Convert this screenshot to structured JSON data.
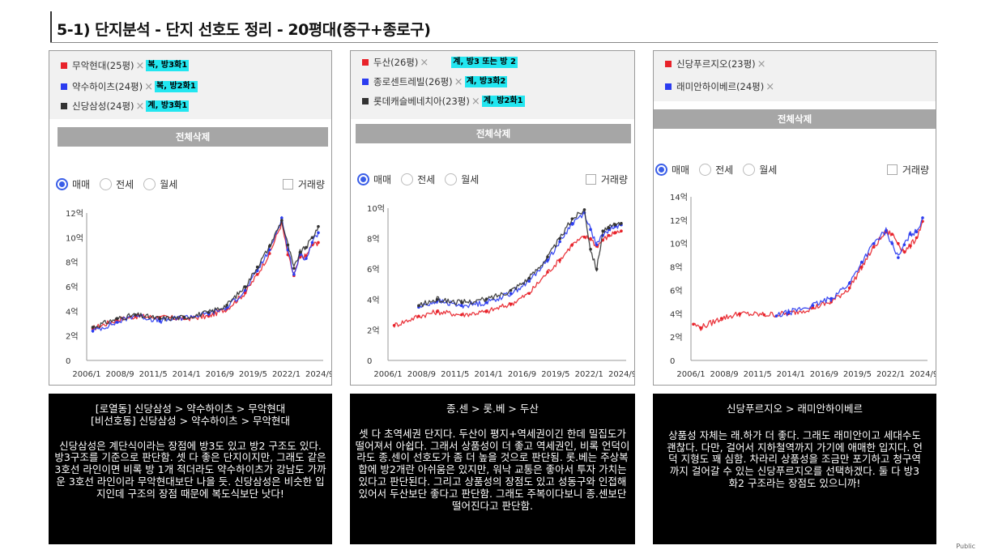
{
  "title": "5-1) 단지분석 - 단지 선호도 정리 - 20평대(중구+종로구)",
  "footer": "Public",
  "colors": {
    "red": "#e8222a",
    "blue": "#2b3cf0",
    "dark": "#333333",
    "highlight": "#22e6f0"
  },
  "controls": {
    "delete_all": "전체삭제",
    "radio": [
      "매매",
      "전세",
      "월세"
    ],
    "volume": "거래량",
    "remove_icon": "close-icon"
  },
  "panels": [
    {
      "items": [
        {
          "color": "red",
          "name": "무악현대(25평)",
          "note": "복, 방3화1"
        },
        {
          "color": "blue",
          "name": "약수하이츠(24평)",
          "note": "복, 방2화1"
        },
        {
          "color": "dark",
          "name": "신당삼성(24평)",
          "note": "계, 방3화1"
        }
      ],
      "comment_title": "[로열동] 신당삼성 > 약수하이츠 > 무악현대\n[비선호동] 신당삼성 > 약수하이츠 > 무악현대",
      "comment_body": "신당삼성은 계단식이라는 장점에 방3도 있고 방2 구조도 있다. 방3구조를 기준으로 판단함. 셋 다 좋은 단지이지만, 그래도 같은 3호선 라인이면 비록 방 1개 적더라도 약수하이츠가 강남도 가까운 3호선 라인이라 무악현대보단 나을 듯. 신당삼성은 비슷한 입지인데 구조의 장점 때문에 복도식보단 낫다!"
    },
    {
      "items": [
        {
          "color": "red",
          "name": "두산(26평)",
          "note": "계, 방3 또는 방 2"
        },
        {
          "color": "blue",
          "name": "종로센트레빌(26평)",
          "note": "계, 방3화2"
        },
        {
          "color": "dark",
          "name": "롯데캐슬베네치아(23평)",
          "note": "계, 방2화1"
        }
      ],
      "comment_title": "종.센 > 롯.베 > 두산",
      "comment_body": "셋 다 초역세권 단지다. 두산이 평지+역세권이긴 한데 밀집도가 떨어져서 아쉽다. 그래서 상품성이 더 좋고 역세권인, 비록 언덕이라도 종.센이 선호도가 좀 더 높을 것으로 판단됨. 롯.베는 주상복합에 방2개란 아쉬움은 있지만, 워낙 교통은 좋아서 투자 가치는 있다고 판단된다. 그리고 상품성의 장점도 있고 성동구와 인접해 있어서 두산보단 좋다고 판단함. 그래도 주복이다보니 종.센보단 떨어진다고 판단함."
    },
    {
      "items": [
        {
          "color": "red",
          "name": "신당푸르지오(23평)",
          "note": ""
        },
        {
          "color": "blue",
          "name": "래미안하이베르(24평)",
          "note": ""
        }
      ],
      "comment_title": "신당푸르지오 > 래미안하이베르",
      "comment_body": "상품성 자체는 래.하가 더 좋다. 그래도 래미안이고 세대수도 괜찮다. 다만, 걸어서 지하철역까지 가기에 애매한 입지다. 언덕 지형도 꽤 심함. 차라리 상품성을 조금만 포기하고 청구역까지 걸어갈 수 있는 신당푸르지오를 선택하겠다. 둘 다 방3화2 구조라는 장점도 있으니까!"
    }
  ],
  "chart_data": [
    {
      "type": "line",
      "title": "",
      "xlabel": "",
      "ylabel": "",
      "x_ticks": [
        "2006/1",
        "2008/9",
        "2011/5",
        "2014/1",
        "2016/9",
        "2019/5",
        "2022/1",
        "2024/9"
      ],
      "y_ticks": [
        "0",
        "2억",
        "4억",
        "6억",
        "8억",
        "10억",
        "12억"
      ],
      "ylim": [
        0,
        12
      ],
      "xlim": [
        2006.0,
        2025.4
      ],
      "grid": false,
      "series": [
        {
          "color": "red",
          "points": [
            [
              2006.5,
              2.6
            ],
            [
              2008.5,
              3.3
            ],
            [
              2010,
              3.6
            ],
            [
              2012,
              3.5
            ],
            [
              2014,
              3.4
            ],
            [
              2016,
              3.6
            ],
            [
              2017.5,
              4.2
            ],
            [
              2019,
              5.5
            ],
            [
              2020,
              7.0
            ],
            [
              2021,
              8.7
            ],
            [
              2022,
              11.2
            ],
            [
              2022.5,
              8.6
            ],
            [
              2023,
              6.9
            ],
            [
              2023.5,
              8.4
            ],
            [
              2024,
              8.5
            ],
            [
              2024.5,
              9.4
            ],
            [
              2025,
              9.6
            ]
          ]
        },
        {
          "color": "blue",
          "points": [
            [
              2006.5,
              2.4
            ],
            [
              2008.5,
              3.1
            ],
            [
              2010,
              3.7
            ],
            [
              2012,
              3.2
            ],
            [
              2014,
              3.5
            ],
            [
              2016,
              3.8
            ],
            [
              2017.5,
              4.3
            ],
            [
              2019,
              5.7
            ],
            [
              2020,
              7.3
            ],
            [
              2021,
              9.0
            ],
            [
              2022,
              11.6
            ],
            [
              2022.5,
              9.0
            ],
            [
              2023,
              7.0
            ],
            [
              2023.5,
              8.6
            ],
            [
              2024,
              8.3
            ],
            [
              2024.5,
              9.6
            ],
            [
              2025,
              10.4
            ]
          ]
        },
        {
          "color": "dark",
          "points": [
            [
              2006.5,
              2.7
            ],
            [
              2008.5,
              3.4
            ],
            [
              2010,
              3.7
            ],
            [
              2012,
              3.4
            ],
            [
              2014,
              3.5
            ],
            [
              2016,
              3.9
            ],
            [
              2017.5,
              4.5
            ],
            [
              2019,
              6.0
            ],
            [
              2020,
              7.6
            ],
            [
              2021,
              9.3
            ],
            [
              2022,
              11.4
            ],
            [
              2022.5,
              9.4
            ],
            [
              2023,
              7.5
            ],
            [
              2023.5,
              8.8
            ],
            [
              2024,
              9.2
            ],
            [
              2024.5,
              10.0
            ],
            [
              2025,
              10.9
            ]
          ]
        }
      ]
    },
    {
      "type": "line",
      "title": "",
      "xlabel": "",
      "ylabel": "",
      "x_ticks": [
        "2006/1",
        "2008/9",
        "2011/5",
        "2014/1",
        "2016/9",
        "2019/5",
        "2022/1",
        "2024/9"
      ],
      "y_ticks": [
        "0",
        "2억",
        "4억",
        "6억",
        "8억",
        "10억"
      ],
      "ylim": [
        0,
        10
      ],
      "xlim": [
        2006.0,
        2025.4
      ],
      "grid": false,
      "series": [
        {
          "color": "red",
          "points": [
            [
              2006.5,
              2.3
            ],
            [
              2008.5,
              2.9
            ],
            [
              2010,
              3.2
            ],
            [
              2012,
              3.0
            ],
            [
              2014,
              3.2
            ],
            [
              2016,
              3.7
            ],
            [
              2017.5,
              4.4
            ],
            [
              2019,
              5.8
            ],
            [
              2020,
              6.6
            ],
            [
              2021,
              7.6
            ],
            [
              2022,
              8.1
            ],
            [
              2022.5,
              8.0
            ],
            [
              2023,
              7.5
            ],
            [
              2023.5,
              7.9
            ],
            [
              2024,
              8.2
            ],
            [
              2024.5,
              8.4
            ],
            [
              2025,
              8.5
            ]
          ]
        },
        {
          "color": "blue",
          "points": [
            [
              2008.5,
              3.5
            ],
            [
              2010,
              3.9
            ],
            [
              2012,
              3.6
            ],
            [
              2014,
              3.8
            ],
            [
              2016,
              4.4
            ],
            [
              2017.5,
              5.2
            ],
            [
              2019,
              6.6
            ],
            [
              2020,
              7.8
            ],
            [
              2021,
              9.0
            ],
            [
              2022,
              9.7
            ],
            [
              2022.5,
              8.6
            ],
            [
              2023,
              7.6
            ],
            [
              2023.5,
              8.2
            ],
            [
              2024,
              8.6
            ],
            [
              2024.5,
              8.8
            ],
            [
              2025,
              8.9
            ]
          ]
        },
        {
          "color": "dark",
          "points": [
            [
              2008.5,
              3.6
            ],
            [
              2010,
              4.0
            ],
            [
              2012,
              3.8
            ],
            [
              2014,
              4.0
            ],
            [
              2016,
              4.6
            ],
            [
              2017.5,
              5.4
            ],
            [
              2019,
              6.8
            ],
            [
              2020,
              8.0
            ],
            [
              2021,
              9.3
            ],
            [
              2022,
              9.9
            ],
            [
              2022.5,
              7.3
            ],
            [
              2023,
              6.0
            ],
            [
              2023.5,
              8.5
            ],
            [
              2024,
              8.7
            ],
            [
              2024.5,
              8.9
            ],
            [
              2025,
              9.0
            ]
          ]
        }
      ]
    },
    {
      "type": "line",
      "title": "",
      "xlabel": "",
      "ylabel": "",
      "x_ticks": [
        "2006/1",
        "2008/9",
        "2011/5",
        "2014/1",
        "2016/9",
        "2019/5",
        "2022/1",
        "2024/9"
      ],
      "y_ticks": [
        "0",
        "2억",
        "4억",
        "6억",
        "8억",
        "10억",
        "12억",
        "14억"
      ],
      "ylim": [
        0,
        14
      ],
      "xlim": [
        2006.0,
        2025.4
      ],
      "grid": false,
      "series": [
        {
          "color": "red",
          "points": [
            [
              2006.2,
              3.1
            ],
            [
              2006.8,
              2.8
            ],
            [
              2008.5,
              3.6
            ],
            [
              2010,
              4.0
            ],
            [
              2012,
              3.9
            ],
            [
              2014,
              4.0
            ],
            [
              2016,
              4.5
            ],
            [
              2017.5,
              5.0
            ],
            [
              2019,
              6.2
            ],
            [
              2020,
              8.0
            ],
            [
              2021,
              9.7
            ],
            [
              2022,
              11.0
            ],
            [
              2022.5,
              10.8
            ],
            [
              2023,
              10.0
            ],
            [
              2023.5,
              9.3
            ],
            [
              2024,
              9.8
            ],
            [
              2024.5,
              10.5
            ],
            [
              2025,
              11.9
            ]
          ]
        },
        {
          "color": "blue",
          "points": [
            [
              2013,
              3.8
            ],
            [
              2014,
              4.1
            ],
            [
              2016,
              4.7
            ],
            [
              2017.5,
              5.3
            ],
            [
              2019,
              6.6
            ],
            [
              2020,
              8.4
            ],
            [
              2021,
              10.0
            ],
            [
              2022,
              11.1
            ],
            [
              2022.5,
              10.0
            ],
            [
              2023,
              8.8
            ],
            [
              2023.5,
              9.9
            ],
            [
              2024,
              10.8
            ],
            [
              2024.5,
              11.0
            ],
            [
              2025,
              12.2
            ]
          ]
        }
      ]
    }
  ]
}
